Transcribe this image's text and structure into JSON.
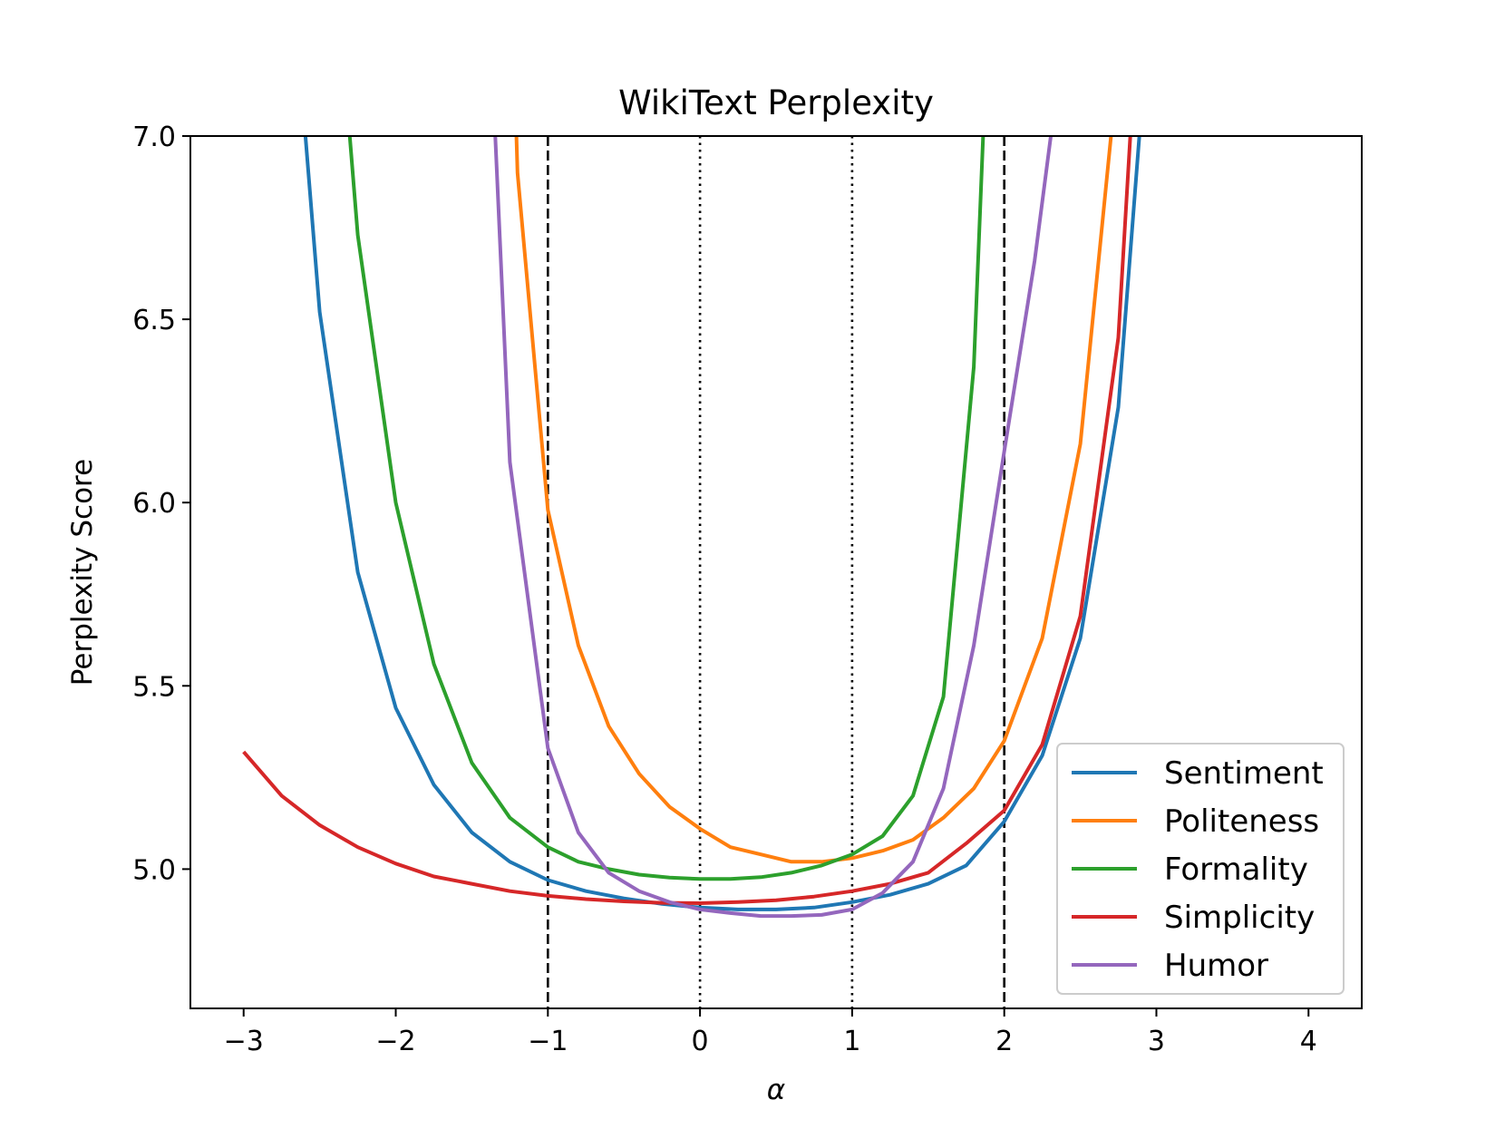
{
  "chart_data": {
    "type": "line",
    "title": "WikiText Perplexity",
    "xlabel": "α",
    "ylabel": "Perplexity Score",
    "xlim": [
      -3.35,
      4.35
    ],
    "ylim": [
      4.62,
      7.0
    ],
    "xticks": [
      -3,
      -2,
      -1,
      0,
      1,
      2,
      3,
      4
    ],
    "xtick_labels": [
      "−3",
      "−2",
      "−1",
      "0",
      "1",
      "2",
      "3",
      "4"
    ],
    "yticks": [
      5.0,
      5.5,
      6.0,
      6.5,
      7.0
    ],
    "ytick_labels": [
      "5.0",
      "5.5",
      "6.0",
      "6.5",
      "7.0"
    ],
    "grid": false,
    "legend_position": "lower-right",
    "vlines": [
      {
        "x": -1,
        "style": "dashed"
      },
      {
        "x": 0,
        "style": "dotted"
      },
      {
        "x": 1,
        "style": "dotted"
      },
      {
        "x": 2,
        "style": "dashed"
      }
    ],
    "series": [
      {
        "name": "Sentiment",
        "color": "#1f77b4",
        "points": [
          [
            -2.75,
            7.8
          ],
          [
            -2.5,
            6.52
          ],
          [
            -2.25,
            5.81
          ],
          [
            -2.0,
            5.44
          ],
          [
            -1.75,
            5.23
          ],
          [
            -1.5,
            5.1
          ],
          [
            -1.25,
            5.02
          ],
          [
            -1.0,
            4.97
          ],
          [
            -0.75,
            4.94
          ],
          [
            -0.5,
            4.92
          ],
          [
            -0.25,
            4.905
          ],
          [
            0.0,
            4.895
          ],
          [
            0.25,
            4.89
          ],
          [
            0.5,
            4.89
          ],
          [
            0.75,
            4.895
          ],
          [
            1.0,
            4.91
          ],
          [
            1.25,
            4.93
          ],
          [
            1.5,
            4.96
          ],
          [
            1.75,
            5.01
          ],
          [
            2.0,
            5.13
          ],
          [
            2.25,
            5.31
          ],
          [
            2.5,
            5.63
          ],
          [
            2.75,
            6.26
          ],
          [
            3.0,
            7.6
          ]
        ]
      },
      {
        "name": "Politeness",
        "color": "#ff7f0e",
        "points": [
          [
            -1.25,
            7.6
          ],
          [
            -1.2,
            6.9
          ],
          [
            -1.0,
            5.98
          ],
          [
            -0.8,
            5.61
          ],
          [
            -0.6,
            5.39
          ],
          [
            -0.4,
            5.26
          ],
          [
            -0.2,
            5.17
          ],
          [
            0.0,
            5.11
          ],
          [
            0.2,
            5.06
          ],
          [
            0.4,
            5.04
          ],
          [
            0.6,
            5.02
          ],
          [
            0.8,
            5.02
          ],
          [
            1.0,
            5.03
          ],
          [
            1.2,
            5.05
          ],
          [
            1.4,
            5.08
          ],
          [
            1.6,
            5.14
          ],
          [
            1.8,
            5.22
          ],
          [
            2.0,
            5.35
          ],
          [
            2.25,
            5.63
          ],
          [
            2.5,
            6.16
          ],
          [
            2.75,
            7.2
          ]
        ]
      },
      {
        "name": "Formality",
        "color": "#2ca02c",
        "points": [
          [
            -2.4,
            7.5
          ],
          [
            -2.25,
            6.73
          ],
          [
            -2.0,
            6.0
          ],
          [
            -1.75,
            5.56
          ],
          [
            -1.5,
            5.29
          ],
          [
            -1.25,
            5.14
          ],
          [
            -1.0,
            5.06
          ],
          [
            -0.8,
            5.02
          ],
          [
            -0.6,
            5.0
          ],
          [
            -0.4,
            4.985
          ],
          [
            -0.2,
            4.977
          ],
          [
            0.0,
            4.973
          ],
          [
            0.2,
            4.973
          ],
          [
            0.4,
            4.978
          ],
          [
            0.6,
            4.99
          ],
          [
            0.8,
            5.01
          ],
          [
            1.0,
            5.04
          ],
          [
            1.2,
            5.09
          ],
          [
            1.4,
            5.2
          ],
          [
            1.6,
            5.47
          ],
          [
            1.8,
            6.37
          ],
          [
            1.9,
            7.4
          ]
        ]
      },
      {
        "name": "Simplicity",
        "color": "#d62728",
        "points": [
          [
            -3.0,
            5.32
          ],
          [
            -2.75,
            5.2
          ],
          [
            -2.5,
            5.12
          ],
          [
            -2.25,
            5.06
          ],
          [
            -2.0,
            5.015
          ],
          [
            -1.75,
            4.98
          ],
          [
            -1.5,
            4.96
          ],
          [
            -1.25,
            4.94
          ],
          [
            -1.0,
            4.927
          ],
          [
            -0.75,
            4.918
          ],
          [
            -0.5,
            4.912
          ],
          [
            -0.25,
            4.908
          ],
          [
            0.0,
            4.907
          ],
          [
            0.25,
            4.91
          ],
          [
            0.5,
            4.915
          ],
          [
            0.75,
            4.925
          ],
          [
            1.0,
            4.94
          ],
          [
            1.25,
            4.96
          ],
          [
            1.5,
            4.99
          ],
          [
            1.75,
            5.07
          ],
          [
            2.0,
            5.16
          ],
          [
            2.25,
            5.34
          ],
          [
            2.5,
            5.69
          ],
          [
            2.75,
            6.45
          ],
          [
            2.9,
            7.5
          ]
        ]
      },
      {
        "name": "Humor",
        "color": "#9467bd",
        "points": [
          [
            -1.4,
            7.5
          ],
          [
            -1.25,
            6.11
          ],
          [
            -1.0,
            5.33
          ],
          [
            -0.8,
            5.1
          ],
          [
            -0.6,
            4.99
          ],
          [
            -0.4,
            4.94
          ],
          [
            -0.2,
            4.91
          ],
          [
            0.0,
            4.89
          ],
          [
            0.2,
            4.88
          ],
          [
            0.4,
            4.872
          ],
          [
            0.6,
            4.872
          ],
          [
            0.8,
            4.875
          ],
          [
            1.0,
            4.89
          ],
          [
            1.2,
            4.935
          ],
          [
            1.4,
            5.02
          ],
          [
            1.6,
            5.22
          ],
          [
            1.8,
            5.61
          ],
          [
            2.0,
            6.14
          ],
          [
            2.2,
            6.66
          ],
          [
            2.4,
            7.3
          ]
        ]
      }
    ]
  }
}
